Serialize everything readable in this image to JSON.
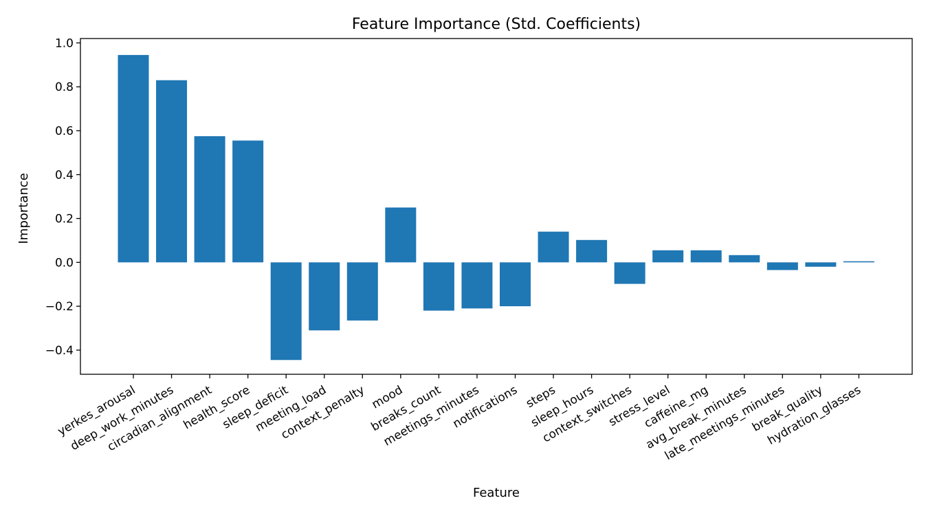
{
  "chart_data": {
    "type": "bar",
    "title": "Feature Importance (Std. Coefficients)",
    "xlabel": "Feature",
    "ylabel": "Importance",
    "ylim": [
      -0.51,
      1.02
    ],
    "yticks": [
      -0.4,
      -0.2,
      0.0,
      0.2,
      0.4,
      0.6,
      0.8,
      1.0
    ],
    "ytick_labels": [
      "−0.4",
      "−0.2",
      "0.0",
      "0.2",
      "0.4",
      "0.6",
      "0.8",
      "1.0"
    ],
    "grid": false,
    "bar_color": "#1f77b4",
    "categories": [
      "yerkes_arousal",
      "deep_work_minutes",
      "circadian_alignment",
      "health_score",
      "sleep_deficit",
      "meeting_load",
      "context_penalty",
      "mood",
      "breaks_count",
      "meetings_minutes",
      "notifications",
      "steps",
      "sleep_hours",
      "context_switches",
      "stress_level",
      "caffeine_mg",
      "avg_break_minutes",
      "late_meetings_minutes",
      "break_quality",
      "hydration_glasses"
    ],
    "values": [
      0.945,
      0.83,
      0.575,
      0.555,
      -0.445,
      -0.31,
      -0.265,
      0.25,
      -0.22,
      -0.21,
      -0.2,
      0.14,
      0.102,
      -0.098,
      0.055,
      0.055,
      0.033,
      -0.035,
      -0.02,
      0.005
    ]
  }
}
